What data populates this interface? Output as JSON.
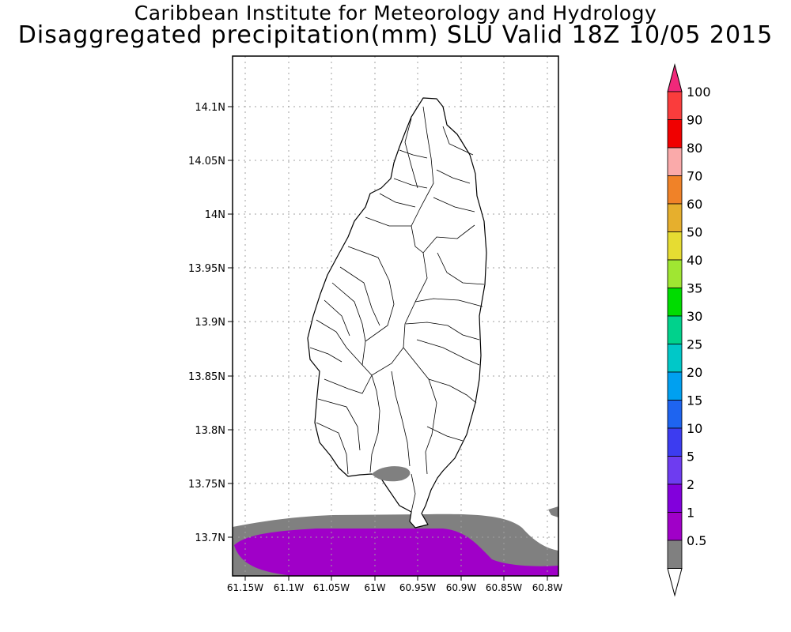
{
  "header": {
    "institution": "Caribbean Institute for Meteorology and Hydrology",
    "product_title": "Disaggregated precipitation(mm) SLU Valid 18Z 10/05 2015"
  },
  "map": {
    "lat_labels": [
      "14.1N",
      "14.05N",
      "14N",
      "13.95N",
      "13.9N",
      "13.85N",
      "13.8N",
      "13.75N",
      "13.7N"
    ],
    "lon_labels": [
      "61.15W",
      "61.1W",
      "61.05W",
      "61W",
      "60.95W",
      "60.9W",
      "60.85W",
      "60.8W"
    ],
    "colors": {
      "land": "#ffffff",
      "sea_background": "#ffffff",
      "band_0_5_to_1": "#808080",
      "band_1_to_2": "#a000c8",
      "grid": "#a0a0a0"
    }
  },
  "colorbar": {
    "levels": [
      {
        "label": "0.5",
        "color": "#808080"
      },
      {
        "label": "1",
        "color": "#a000c8"
      },
      {
        "label": "2",
        "color": "#8200dc"
      },
      {
        "label": "5",
        "color": "#6e3cf0"
      },
      {
        "label": "10",
        "color": "#3c3cf0"
      },
      {
        "label": "15",
        "color": "#1e64f0"
      },
      {
        "label": "20",
        "color": "#00a0f0"
      },
      {
        "label": "25",
        "color": "#00c8c8"
      },
      {
        "label": "30",
        "color": "#00d28c"
      },
      {
        "label": "35",
        "color": "#00dc00"
      },
      {
        "label": "40",
        "color": "#a0e632"
      },
      {
        "label": "50",
        "color": "#e6dc32"
      },
      {
        "label": "60",
        "color": "#e6af2d"
      },
      {
        "label": "70",
        "color": "#f08228"
      },
      {
        "label": "80",
        "color": "#faaaaa"
      },
      {
        "label": "90",
        "color": "#f00000"
      },
      {
        "label": "100",
        "color": "#fa3c3c"
      }
    ],
    "top_arrow_color": "#f0287a",
    "bottom_arrow_color": "#ffffff"
  }
}
